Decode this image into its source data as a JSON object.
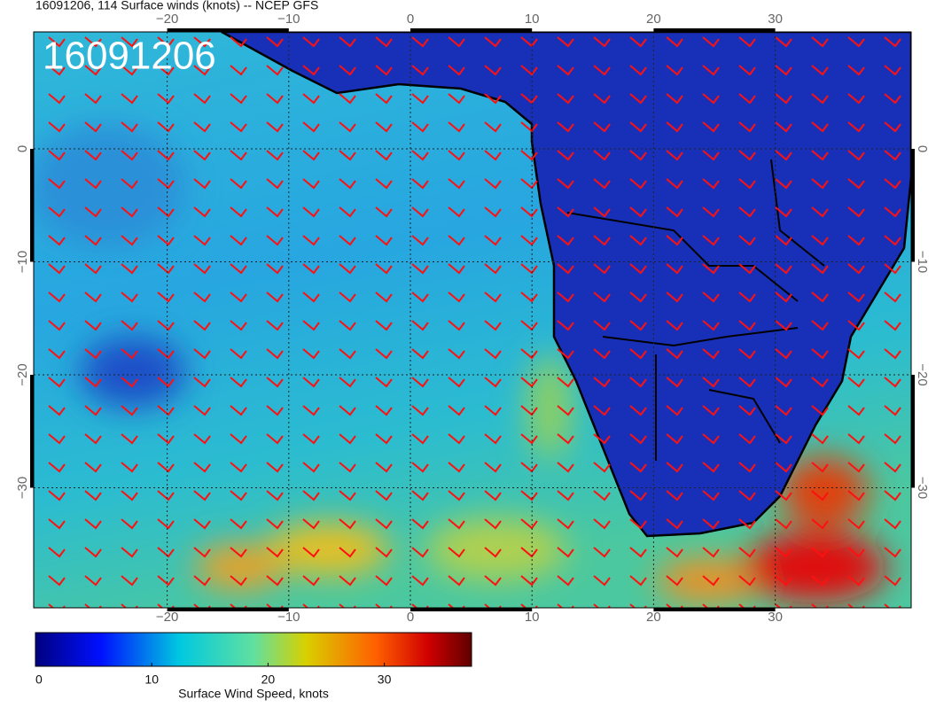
{
  "header": {
    "title": "16091206, 114 Surface winds (knots) -- NCEP GFS"
  },
  "map": {
    "stamp": "16091206",
    "lon_ticks": [
      {
        "value": -20,
        "label": "−20"
      },
      {
        "value": -10,
        "label": "−10"
      },
      0,
      10,
      20,
      30
    ],
    "lat_ticks": [
      0,
      {
        "value": -10,
        "label": "−10"
      },
      {
        "value": -20,
        "label": "−20"
      },
      {
        "value": -30,
        "label": "−30"
      }
    ]
  },
  "colorbar": {
    "label": "Surface Wind Speed, knots",
    "ticks": [
      0,
      10,
      20,
      30
    ]
  }
}
